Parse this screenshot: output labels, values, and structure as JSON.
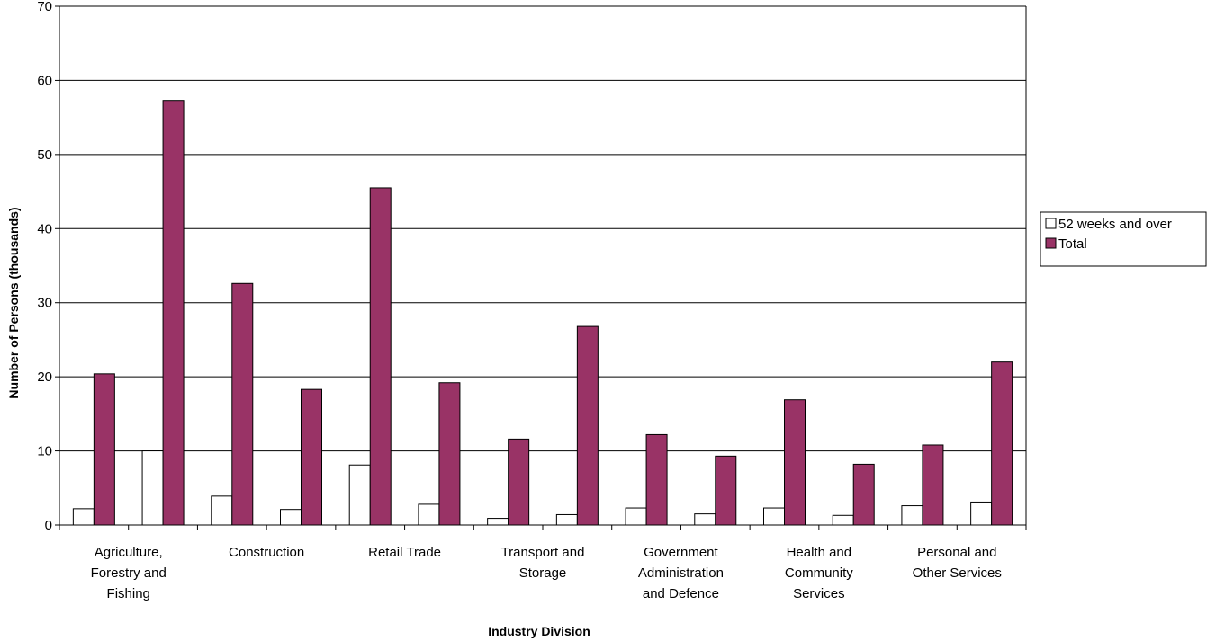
{
  "chart_data": {
    "type": "bar",
    "title": "",
    "xlabel": "Industry Division",
    "ylabel": "Number of Persons (thousands)",
    "ylim": [
      0,
      70
    ],
    "yticks": [
      0,
      10,
      20,
      30,
      40,
      50,
      60,
      70
    ],
    "grid": true,
    "legend_position": "right",
    "categories": [
      "Agriculture, Forestry and Fishing",
      "",
      "Construction",
      "",
      "Retail Trade",
      "",
      "Transport and Storage",
      "",
      "Government Administration and Defence",
      "",
      "Health and Community Services",
      "",
      "Personal and Other Services",
      ""
    ],
    "category_label_lines": [
      [
        "Agriculture,",
        "Forestry and",
        "Fishing"
      ],
      [],
      [
        "Construction"
      ],
      [],
      [
        "Retail Trade"
      ],
      [],
      [
        "Transport and",
        "Storage"
      ],
      [],
      [
        "Government",
        "Administration",
        "and Defence"
      ],
      [],
      [
        "Health and",
        "Community",
        "Services"
      ],
      [],
      [
        "Personal and",
        "Other Services"
      ],
      []
    ],
    "series": [
      {
        "name": "52 weeks and over",
        "color": "#ffffff",
        "values": [
          2.2,
          10.0,
          3.9,
          2.1,
          8.1,
          2.8,
          0.9,
          1.4,
          2.3,
          1.5,
          2.3,
          1.3,
          2.6,
          3.1
        ]
      },
      {
        "name": "Total",
        "color": "#993366",
        "values": [
          20.4,
          57.3,
          32.6,
          18.3,
          45.5,
          19.2,
          11.6,
          26.8,
          12.2,
          9.3,
          16.9,
          8.2,
          10.8,
          22.0
        ]
      }
    ]
  }
}
